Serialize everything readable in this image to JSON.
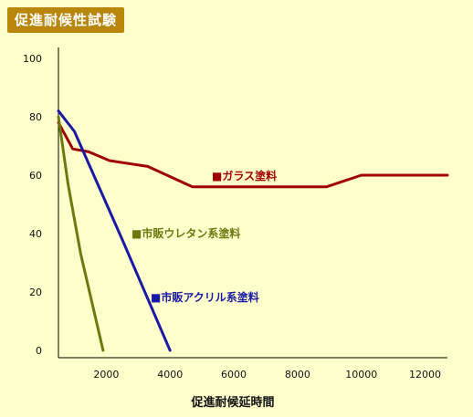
{
  "chart_data": {
    "type": "line",
    "title": "促進耐候性試験",
    "xlabel": "促進耐候延時間",
    "ylabel": "",
    "xlim": [
      500,
      12700
    ],
    "ylim": [
      0,
      105
    ],
    "x_ticks": [
      2000,
      4000,
      6000,
      8000,
      10000,
      12000
    ],
    "y_ticks": [
      0,
      20,
      40,
      60,
      80,
      100
    ],
    "series": [
      {
        "name": "ガラス塗料",
        "color": "#a00000",
        "marker": "■",
        "x": [
          500,
          950,
          1450,
          2100,
          3300,
          4700,
          5200,
          8900,
          10000,
          12700
        ],
        "y": [
          78,
          69,
          68,
          65,
          63,
          56,
          56,
          56,
          60,
          60
        ]
      },
      {
        "name": "市販ウレタン系塗料",
        "color": "#6b7a10",
        "marker": "■",
        "x": [
          500,
          800,
          1200,
          1900
        ],
        "y": [
          80,
          57,
          33,
          0
        ]
      },
      {
        "name": "市販アクリル系塗料",
        "color": "#1a1aa6",
        "marker": "■",
        "x": [
          500,
          1000,
          2500,
          4000
        ],
        "y": [
          82,
          75,
          38,
          0
        ]
      }
    ]
  }
}
